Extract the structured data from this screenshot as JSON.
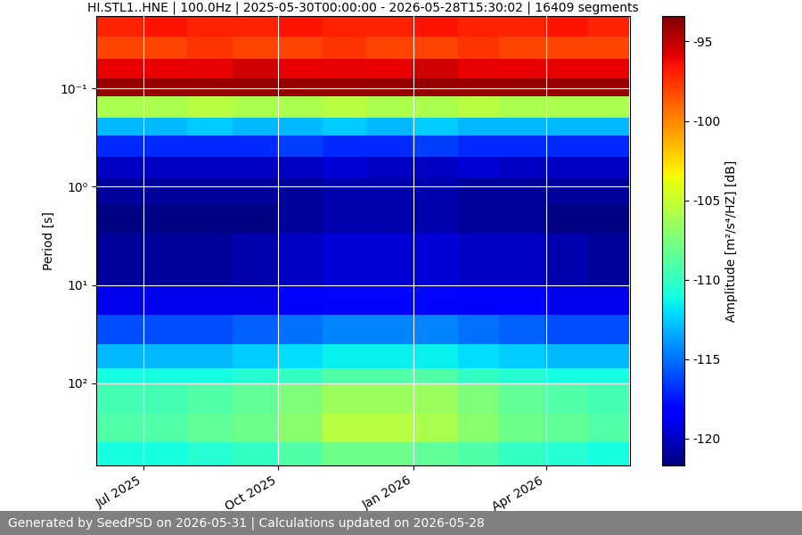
{
  "chart_data": {
    "type": "heatmap",
    "title": "HI.STL1..HNE | 100.0Hz | 2025-05-30T00:00:00 - 2026-05-28T15:30:02 | 16409 segments",
    "ylabel": "Period [s]",
    "x_edges": [
      "2025-05-30",
      "2025-06-30",
      "2025-07-31",
      "2025-08-31",
      "2025-09-30",
      "2025-10-31",
      "2025-11-30",
      "2025-12-31",
      "2026-01-31",
      "2026-02-28",
      "2026-03-31",
      "2026-04-30",
      "2026-05-28"
    ],
    "y_edges": [
      0.0184,
      0.03,
      0.05,
      0.08,
      0.12,
      0.2,
      0.3,
      0.5,
      0.8,
      1.5,
      3,
      10,
      20,
      40,
      70,
      100,
      200,
      400,
      686
    ],
    "cells": [
      [
        -97,
        -96.5,
        -97,
        -97,
        -96.5,
        -97,
        -97,
        -96.5,
        -97,
        -97,
        -96.5,
        -97
      ],
      [
        -98,
        -98,
        -97.5,
        -98,
        -98,
        -97.5,
        -98,
        -98,
        -97.5,
        -98,
        -98,
        -98
      ],
      [
        -96,
        -96,
        -96,
        -95.5,
        -96,
        -96,
        -96,
        -95.5,
        -96,
        -96,
        -96,
        -96
      ],
      [
        -94,
        -94,
        -94,
        -94,
        -94,
        -94,
        -94,
        -94,
        -94,
        -94,
        -94,
        -94
      ],
      [
        -106,
        -106,
        -105.5,
        -106,
        -106,
        -105.5,
        -106,
        -106,
        -105.5,
        -106,
        -106,
        -106
      ],
      [
        -113,
        -113,
        -112.5,
        -113,
        -113,
        -112.5,
        -113,
        -112.5,
        -113,
        -113,
        -113,
        -113
      ],
      [
        -117,
        -117,
        -117,
        -117,
        -116.5,
        -117,
        -117,
        -116.5,
        -117,
        -117,
        -117,
        -117
      ],
      [
        -120,
        -120,
        -120,
        -120,
        -120,
        -119.5,
        -120,
        -120,
        -119.5,
        -120,
        -120,
        -120
      ],
      [
        -121,
        -121,
        -121,
        -121,
        -121,
        -120.5,
        -120.5,
        -120.5,
        -121,
        -121,
        -121,
        -121
      ],
      [
        -121.5,
        -121.5,
        -121.5,
        -121.5,
        -121,
        -120.5,
        -120.5,
        -120.5,
        -121,
        -121,
        -121.5,
        -121.5
      ],
      [
        -121,
        -121,
        -121,
        -120.5,
        -120,
        -119.5,
        -119.5,
        -119.5,
        -120,
        -120,
        -120.5,
        -121
      ],
      [
        -119,
        -119,
        -119,
        -119,
        -118.5,
        -118,
        -118,
        -118,
        -118.5,
        -118.5,
        -119,
        -119
      ],
      [
        -116,
        -116,
        -116,
        -115.5,
        -115,
        -114.5,
        -114.5,
        -114.5,
        -115,
        -115.5,
        -116,
        -116
      ],
      [
        -113,
        -113,
        -113,
        -112.5,
        -112,
        -111.5,
        -111.5,
        -111.5,
        -112,
        -112.5,
        -113,
        -113
      ],
      [
        -111,
        -111,
        -111,
        -110.5,
        -110,
        -109,
        -109,
        -109,
        -110,
        -110.5,
        -111,
        -111
      ],
      [
        -109.5,
        -109.5,
        -109,
        -108.5,
        -107.5,
        -106.5,
        -106.5,
        -106.5,
        -107.5,
        -108.5,
        -109,
        -109.5
      ],
      [
        -109,
        -109,
        -108.5,
        -108,
        -107,
        -105.5,
        -105.5,
        -106,
        -107,
        -108,
        -108.5,
        -109
      ],
      [
        -111,
        -111,
        -110.5,
        -110,
        -109,
        -108,
        -108,
        -108.5,
        -109,
        -110,
        -110.5,
        -111
      ]
    ],
    "xlim": [
      "2025-05-30",
      "2026-05-28"
    ],
    "xticks": [
      {
        "value": "2025-07-01",
        "label": "Jul 2025"
      },
      {
        "value": "2025-10-01",
        "label": "Oct 2025"
      },
      {
        "value": "2026-01-01",
        "label": "Jan 2026"
      },
      {
        "value": "2026-04-01",
        "label": "Apr 2026"
      }
    ],
    "ylim": [
      686,
      0.0184
    ],
    "yticks": [
      {
        "value": 0.1,
        "label": "10⁻¹"
      },
      {
        "value": 1,
        "label": "10⁰"
      },
      {
        "value": 10,
        "label": "10¹"
      },
      {
        "value": 100,
        "label": "10²"
      }
    ],
    "log": "y",
    "grid": true,
    "colorbar": {
      "label": "Amplitude [m²/s⁴/HZ] [dB]",
      "range": [
        -121.7,
        -93.4
      ],
      "ticks": [
        -95,
        -100,
        -105,
        -110,
        -115,
        -120
      ]
    },
    "footer": "Generated by SeedPSD on 2026-05-31 | Calculations updated on 2026-05-28"
  }
}
